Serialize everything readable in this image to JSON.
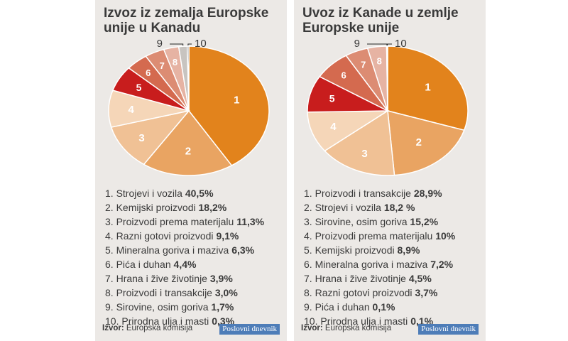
{
  "colors": [
    "#e2831c",
    "#e9a462",
    "#f0c195",
    "#f5d6b8",
    "#c81d1d",
    "#d46a4f",
    "#dc8c73",
    "#e6b3a3",
    "#c8c4c0",
    "#5a5a5a"
  ],
  "source_label": "Izvor:",
  "source_value": "Europska komisija",
  "brand": "Poslovni dnevnik",
  "chart_data": [
    {
      "type": "pie",
      "title": "Izvoz iz zemalja Europske unije u Kanadu",
      "slice_labels": [
        "1",
        "2",
        "3",
        "4",
        "5",
        "6",
        "7",
        "8",
        "9",
        "10"
      ],
      "categories": [
        "Strojevi i vozila",
        "Kemijski proizvodi",
        "Proizvodi prema materijalu",
        "Razni gotovi proizvodi",
        "Mineralna goriva i maziva",
        "Pića i duhan",
        "Hrana i žive životinje",
        "Proizvodi i transakcije",
        "Sirovine, osim goriva",
        "Prirodna ulja i masti"
      ],
      "values": [
        40.5,
        18.2,
        11.3,
        9.1,
        6.3,
        4.4,
        3.9,
        3.0,
        1.7,
        0.3
      ],
      "value_labels": [
        "40,5%",
        "18,2%",
        "11,3%",
        "9,1%",
        "6,3%",
        "4,4%",
        "3,9%",
        "3,0%",
        "1,7%",
        "0,3%"
      ]
    },
    {
      "type": "pie",
      "title": "Uvoz iz Kanade u zemlje Europske unije",
      "slice_labels": [
        "1",
        "2",
        "3",
        "4",
        "5",
        "6",
        "7",
        "8",
        "9",
        "10"
      ],
      "categories": [
        "Proizvodi i transakcije",
        "Strojevi i vozila",
        "Sirovine, osim goriva",
        "Proizvodi prema materijalu",
        "Kemijski proizvodi",
        "Mineralna goriva i maziva",
        "Hrana i žive životinje",
        "Razni gotovi proizvodi",
        "Pića i duhan",
        "Prirodna ulja i masti"
      ],
      "values": [
        28.9,
        18.2,
        15.2,
        10,
        8.9,
        7.2,
        4.5,
        3.7,
        0.1,
        0.1
      ],
      "value_labels": [
        "28,9%",
        "18,2 %",
        "15,2%",
        "10%",
        "8,9%",
        "7,2%",
        "4,5%",
        "3,7%",
        "0,1%",
        "0,1%"
      ]
    }
  ]
}
